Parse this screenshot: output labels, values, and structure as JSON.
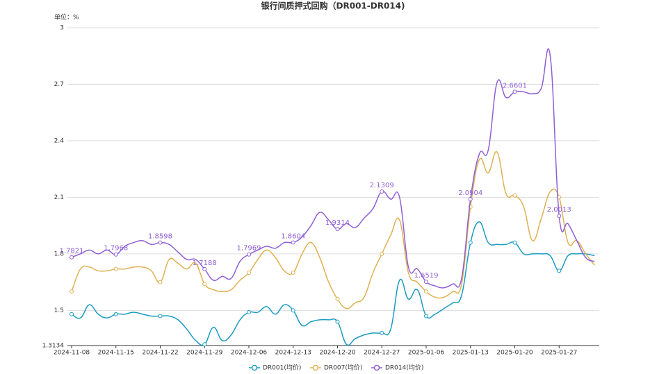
{
  "chart_data": {
    "type": "line",
    "title": "银行间质押式回购（DR001-DR014)",
    "y_unit": "单位：%",
    "categories": [
      "2024-11-08",
      null,
      null,
      null,
      null,
      "2024-11-15",
      null,
      null,
      null,
      null,
      "2024-11-22",
      null,
      null,
      null,
      null,
      "2024-11-29",
      null,
      null,
      null,
      null,
      "2024-12-06",
      null,
      null,
      null,
      null,
      "2024-12-13",
      null,
      null,
      null,
      null,
      "2024-12-20",
      null,
      null,
      null,
      null,
      "2024-12-27",
      null,
      null,
      null,
      null,
      "2025-01-06",
      null,
      null,
      null,
      null,
      "2025-01-13",
      null,
      null,
      null,
      null,
      "2025-01-20",
      null,
      null,
      null,
      null,
      "2025-01-27",
      null,
      null,
      null,
      null
    ],
    "series": [
      {
        "name": "DR001(均价)",
        "color": "#1a9bc2",
        "values": [
          1.48,
          1.46,
          1.53,
          1.48,
          1.46,
          1.48,
          1.48,
          1.49,
          1.48,
          1.47,
          1.47,
          1.47,
          1.45,
          1.4,
          1.34,
          1.32,
          1.41,
          1.34,
          1.37,
          1.45,
          1.49,
          1.49,
          1.52,
          1.48,
          1.53,
          1.5,
          1.42,
          1.44,
          1.45,
          1.45,
          1.44,
          1.32,
          1.35,
          1.37,
          1.38,
          1.38,
          1.4,
          1.66,
          1.56,
          1.61,
          1.47,
          1.48,
          1.51,
          1.54,
          1.58,
          1.86,
          1.97,
          1.86,
          1.85,
          1.85,
          1.86,
          1.8,
          1.8,
          1.8,
          1.79,
          1.71,
          1.79,
          1.8,
          1.8,
          1.79
        ]
      },
      {
        "name": "DR007(均价)",
        "color": "#e0b050",
        "values": [
          1.6,
          1.72,
          1.73,
          1.71,
          1.71,
          1.72,
          1.72,
          1.73,
          1.73,
          1.71,
          1.65,
          1.77,
          1.75,
          1.72,
          1.75,
          1.64,
          1.61,
          1.6,
          1.61,
          1.66,
          1.7,
          1.77,
          1.82,
          1.78,
          1.71,
          1.7,
          1.8,
          1.86,
          1.78,
          1.65,
          1.56,
          1.51,
          1.54,
          1.57,
          1.7,
          1.8,
          1.9,
          1.98,
          1.7,
          1.65,
          1.6,
          1.57,
          1.57,
          1.6,
          1.64,
          2.05,
          2.3,
          2.23,
          2.34,
          2.12,
          2.11,
          2.05,
          1.87,
          1.99,
          2.13,
          2.1,
          1.86,
          1.87,
          1.8,
          1.74
        ]
      },
      {
        "name": "DR014(均价)",
        "color": "#8f5fd6",
        "show_labels": true,
        "values": [
          1.7821,
          1.8,
          1.82,
          1.8,
          1.82,
          1.7968,
          1.84,
          1.86,
          1.87,
          1.85,
          1.8598,
          1.85,
          1.81,
          1.77,
          1.77,
          1.7188,
          1.66,
          1.68,
          1.67,
          1.76,
          1.7969,
          1.82,
          1.84,
          1.83,
          1.86,
          1.8604,
          1.89,
          1.95,
          2.02,
          1.98,
          1.9314,
          1.96,
          1.94,
          1.99,
          2.04,
          2.1309,
          2.09,
          2.1,
          1.73,
          1.72,
          1.6519,
          1.63,
          1.62,
          1.64,
          1.67,
          2.0904,
          2.33,
          2.35,
          2.71,
          2.63,
          2.6601,
          2.66,
          2.65,
          2.68,
          2.85,
          2.0013,
          1.96,
          1.87,
          1.78,
          1.76
        ]
      }
    ],
    "marker_every": 5,
    "ylim": [
      1.3134,
      3
    ],
    "yticks": [
      1.3134,
      1.5,
      1.8,
      2.1,
      2.4,
      2.7,
      3
    ],
    "grid": true,
    "legend": "bottom"
  }
}
